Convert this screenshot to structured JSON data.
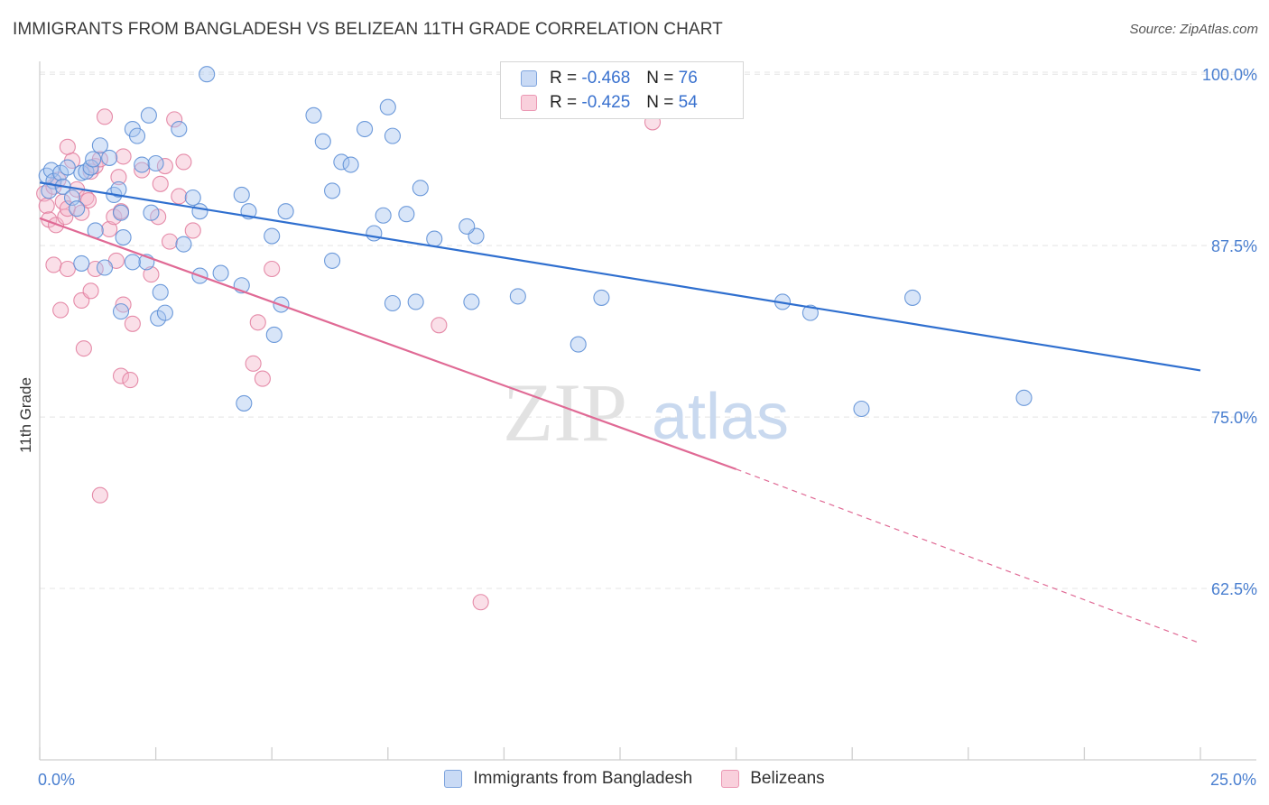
{
  "title": "IMMIGRANTS FROM BANGLADESH VS BELIZEAN 11TH GRADE CORRELATION CHART",
  "source": "Source: ZipAtlas.com",
  "watermark": {
    "part1": "ZIP",
    "part2": "atlas"
  },
  "legend": {
    "r_label": "R =",
    "n_label": "N =",
    "rows": [
      {
        "r": "-0.468",
        "n": "76",
        "color": "#a9c6f0"
      },
      {
        "r": "-0.425",
        "n": "54",
        "color": "#f5b9cc"
      }
    ]
  },
  "colors": {
    "blue_fill": "#a9c6f0",
    "blue_stroke": "#5d8fd6",
    "blue_line": "#2f6fcf",
    "pink_fill": "#f5b9cc",
    "pink_stroke": "#e27fa0",
    "pink_line": "#e06a95",
    "grid": "#e4e4e4",
    "tick_label": "#4a7fd0"
  },
  "chart_data": {
    "type": "scatter",
    "xlabel": "",
    "ylabel": "11th Grade",
    "xlim": [
      0,
      25
    ],
    "ylim": [
      50,
      101.2
    ],
    "x_tick_labels": [
      {
        "value": 0,
        "label": "0.0%"
      },
      {
        "value": 25,
        "label": "25.0%"
      }
    ],
    "y_tick_labels": [
      {
        "value": 100,
        "label": "100.0%"
      },
      {
        "value": 87.5,
        "label": "87.5%"
      },
      {
        "value": 75,
        "label": "75.0%"
      },
      {
        "value": 62.5,
        "label": "62.5%"
      }
    ],
    "grid": true,
    "legend_position": "top-center",
    "series": [
      {
        "name": "Immigrants from Bangladesh",
        "color": "#a9c6f0",
        "trend": {
          "x": [
            0,
            25
          ],
          "y": [
            92.1,
            78.4
          ]
        },
        "points": [
          [
            0.15,
            92.6
          ],
          [
            0.25,
            93.0
          ],
          [
            0.3,
            92.2
          ],
          [
            0.2,
            91.5
          ],
          [
            0.45,
            92.8
          ],
          [
            0.5,
            91.8
          ],
          [
            0.6,
            93.2
          ],
          [
            0.7,
            91.0
          ],
          [
            0.8,
            90.2
          ],
          [
            0.9,
            92.8
          ],
          [
            1.0,
            92.9
          ],
          [
            1.1,
            93.2
          ],
          [
            1.15,
            93.8
          ],
          [
            1.3,
            94.8
          ],
          [
            1.5,
            93.9
          ],
          [
            1.6,
            91.2
          ],
          [
            1.7,
            91.6
          ],
          [
            1.75,
            89.9
          ],
          [
            2.0,
            96.0
          ],
          [
            2.1,
            95.5
          ],
          [
            2.2,
            93.4
          ],
          [
            2.35,
            97.0
          ],
          [
            2.5,
            93.5
          ],
          [
            3.0,
            96.0
          ],
          [
            3.6,
            100.0
          ],
          [
            3.3,
            91.0
          ],
          [
            3.45,
            90.0
          ],
          [
            4.35,
            91.2
          ],
          [
            4.5,
            90.0
          ],
          [
            5.3,
            90.0
          ],
          [
            5.0,
            88.2
          ],
          [
            5.9,
            97.0
          ],
          [
            6.1,
            95.1
          ],
          [
            6.3,
            91.5
          ],
          [
            6.5,
            93.6
          ],
          [
            6.7,
            93.4
          ],
          [
            7.0,
            96.0
          ],
          [
            7.5,
            97.6
          ],
          [
            7.6,
            95.5
          ],
          [
            7.4,
            89.7
          ],
          [
            7.2,
            88.4
          ],
          [
            7.9,
            89.8
          ],
          [
            8.5,
            88.0
          ],
          [
            2.55,
            82.2
          ],
          [
            2.6,
            84.1
          ],
          [
            2.7,
            82.6
          ],
          [
            1.8,
            88.1
          ],
          [
            1.2,
            88.6
          ],
          [
            1.4,
            85.9
          ],
          [
            2.3,
            86.3
          ],
          [
            3.45,
            85.3
          ],
          [
            3.9,
            85.5
          ],
          [
            4.35,
            84.6
          ],
          [
            5.2,
            83.2
          ],
          [
            5.05,
            81.0
          ],
          [
            1.75,
            82.7
          ],
          [
            3.1,
            87.6
          ],
          [
            2.0,
            86.3
          ],
          [
            6.3,
            86.4
          ],
          [
            7.6,
            83.3
          ],
          [
            8.1,
            83.4
          ],
          [
            9.3,
            83.4
          ],
          [
            10.3,
            83.8
          ],
          [
            11.6,
            80.3
          ],
          [
            12.1,
            83.7
          ],
          [
            16.0,
            83.4
          ],
          [
            16.6,
            82.6
          ],
          [
            18.8,
            83.7
          ],
          [
            17.7,
            75.6
          ],
          [
            21.2,
            76.4
          ],
          [
            4.4,
            76.0
          ],
          [
            0.9,
            86.2
          ],
          [
            9.4,
            88.2
          ],
          [
            9.2,
            88.9
          ],
          [
            2.4,
            89.9
          ],
          [
            8.2,
            91.7
          ]
        ]
      },
      {
        "name": "Belizeans",
        "color": "#f5b9cc",
        "trend": {
          "x": [
            0,
            15
          ],
          "y": [
            89.5,
            71.2
          ]
        },
        "trend_dashed": {
          "x": [
            15,
            25
          ],
          "y": [
            71.2,
            58.5
          ]
        },
        "points": [
          [
            0.1,
            91.3
          ],
          [
            0.15,
            90.4
          ],
          [
            0.2,
            89.4
          ],
          [
            0.3,
            91.8
          ],
          [
            0.35,
            89.0
          ],
          [
            0.4,
            92.3
          ],
          [
            0.5,
            90.7
          ],
          [
            0.55,
            89.6
          ],
          [
            0.6,
            90.2
          ],
          [
            0.7,
            93.7
          ],
          [
            0.6,
            94.7
          ],
          [
            0.8,
            91.6
          ],
          [
            0.9,
            89.9
          ],
          [
            1.0,
            91.0
          ],
          [
            1.05,
            90.8
          ],
          [
            1.1,
            92.9
          ],
          [
            1.2,
            93.3
          ],
          [
            1.3,
            93.8
          ],
          [
            1.4,
            96.9
          ],
          [
            1.5,
            88.7
          ],
          [
            1.6,
            89.6
          ],
          [
            1.7,
            92.5
          ],
          [
            1.8,
            94.0
          ],
          [
            2.2,
            93.0
          ],
          [
            2.55,
            89.6
          ],
          [
            2.6,
            92.0
          ],
          [
            2.7,
            93.3
          ],
          [
            2.9,
            96.7
          ],
          [
            3.0,
            91.1
          ],
          [
            3.1,
            93.6
          ],
          [
            1.75,
            90.0
          ],
          [
            0.3,
            86.1
          ],
          [
            0.6,
            85.8
          ],
          [
            0.9,
            83.5
          ],
          [
            1.1,
            84.2
          ],
          [
            1.2,
            85.8
          ],
          [
            0.45,
            82.8
          ],
          [
            0.95,
            80.0
          ],
          [
            1.65,
            86.4
          ],
          [
            1.8,
            83.2
          ],
          [
            2.0,
            81.8
          ],
          [
            2.8,
            87.8
          ],
          [
            3.3,
            88.6
          ],
          [
            2.4,
            85.4
          ],
          [
            4.7,
            81.9
          ],
          [
            4.6,
            78.9
          ],
          [
            4.8,
            77.8
          ],
          [
            5.0,
            85.8
          ],
          [
            8.6,
            81.7
          ],
          [
            1.75,
            78.0
          ],
          [
            1.95,
            77.7
          ],
          [
            1.3,
            69.3
          ],
          [
            13.2,
            96.5
          ],
          [
            9.5,
            61.5
          ]
        ]
      }
    ]
  }
}
